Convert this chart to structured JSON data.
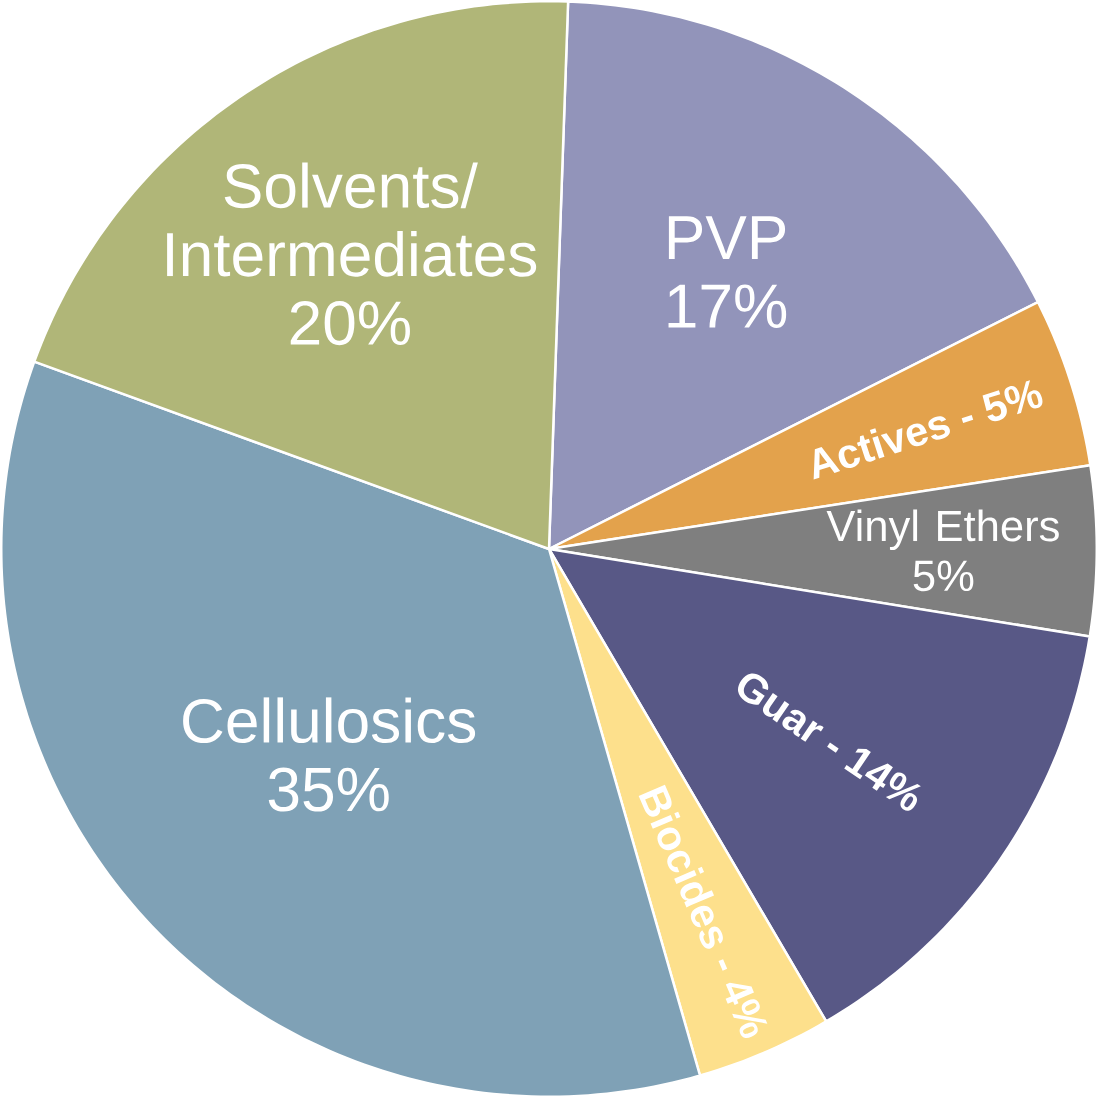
{
  "chart_data": {
    "type": "pie",
    "categories": [
      "PVP",
      "Actives -",
      "Vinyl Ethers",
      "Guar -",
      "Biocides -",
      "Cellulosics",
      "Solvents/ Intermediates"
    ],
    "values": [
      17,
      5,
      5,
      14,
      4,
      35,
      20
    ],
    "value_labels": [
      "17%",
      "5%",
      "5%",
      "14%",
      "4%",
      "35%",
      "20%"
    ],
    "colors": [
      "#9294ba",
      "#e3a24c",
      "#7f7f7f",
      "#585886",
      "#fde08c",
      "#7fa1b6",
      "#b0b678"
    ]
  }
}
